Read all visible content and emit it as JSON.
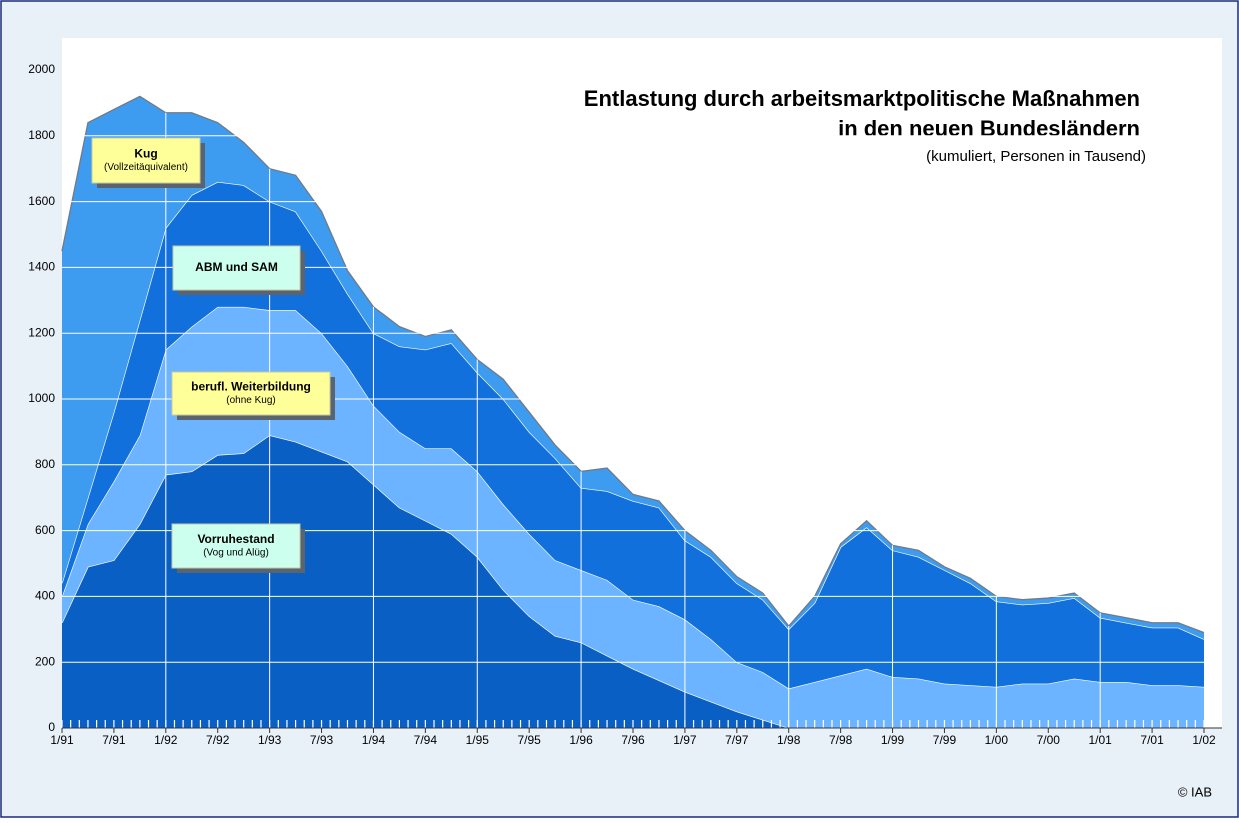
{
  "chart_data": {
    "type": "stacked-area",
    "title": [
      "Entlastung durch arbeitsmarktpolitische Maßnahmen",
      "in den neuen Bundesländern"
    ],
    "subtitle": "(kumuliert, Personen in Tausend)",
    "copyright": "© IAB",
    "categories": [
      "1/91",
      null,
      "7/91",
      null,
      "1/92",
      null,
      "7/92",
      null,
      "1/93",
      null,
      "7/93",
      null,
      "1/94",
      null,
      "7/94",
      null,
      "1/95",
      null,
      "7/95",
      null,
      "1/96",
      null,
      "7/96",
      null,
      "1/97",
      null,
      "7/97",
      null,
      "1/98",
      null,
      "7/98",
      null,
      "1/99",
      null,
      "7/99",
      null,
      "1/00",
      null,
      "7/00",
      null,
      "1/01",
      null,
      "7/01",
      null,
      "1/02"
    ],
    "series": [
      {
        "name": "Vorruhestand",
        "note": "(Vog und Alüg)",
        "color": "#0a5fc4",
        "box": "#ccffee",
        "values": [
          320,
          490,
          510,
          620,
          770,
          780,
          830,
          835,
          890,
          870,
          840,
          810,
          740,
          670,
          630,
          590,
          520,
          420,
          340,
          280,
          260,
          220,
          180,
          145,
          110,
          80,
          50,
          25,
          0,
          0,
          0,
          0,
          0,
          0,
          0,
          0,
          0,
          0,
          0,
          0,
          0,
          0,
          0,
          0,
          0
        ]
      },
      {
        "name": "berufl. Weiterbildung",
        "note": "(ohne Kug)",
        "color": "#6cb4ff",
        "box": "#ffff99",
        "values": [
          80,
          130,
          240,
          270,
          380,
          440,
          450,
          445,
          380,
          400,
          360,
          290,
          240,
          230,
          220,
          260,
          260,
          260,
          250,
          230,
          220,
          230,
          210,
          225,
          220,
          190,
          150,
          145,
          120,
          140,
          160,
          180,
          155,
          150,
          135,
          130,
          125,
          135,
          135,
          150,
          140,
          140,
          130,
          130,
          125
        ]
      },
      {
        "name": "ABM und SAM",
        "color": "#1170dc",
        "box": "#ccffee",
        "values": [
          40,
          80,
          210,
          350,
          370,
          400,
          380,
          370,
          330,
          300,
          250,
          220,
          220,
          260,
          300,
          320,
          300,
          320,
          310,
          310,
          250,
          270,
          300,
          300,
          240,
          250,
          240,
          220,
          180,
          240,
          390,
          430,
          385,
          370,
          345,
          310,
          260,
          240,
          245,
          245,
          195,
          180,
          175,
          175,
          145
        ]
      },
      {
        "name": "Kug",
        "note": "(Vollzeitäquivalent)",
        "color": "#3d9cf0",
        "box": "#ffff99",
        "values": [
          1010,
          1140,
          920,
          680,
          350,
          250,
          180,
          130,
          100,
          110,
          120,
          70,
          80,
          60,
          40,
          40,
          40,
          60,
          60,
          40,
          50,
          70,
          20,
          20,
          30,
          20,
          20,
          20,
          10,
          20,
          10,
          20,
          15,
          20,
          10,
          15,
          15,
          15,
          15,
          15,
          15,
          15,
          15,
          15,
          20
        ]
      }
    ],
    "ylim": [
      0,
      2000
    ],
    "yticks": [
      0,
      200,
      400,
      600,
      800,
      1000,
      1200,
      1400,
      1600,
      1800,
      2000
    ],
    "grid": true
  }
}
